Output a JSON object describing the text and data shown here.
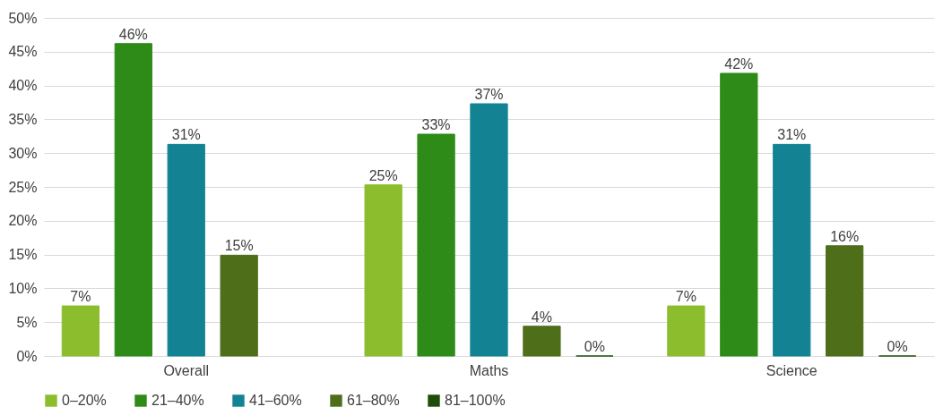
{
  "chart_data": {
    "type": "bar",
    "categories": [
      "Overall",
      "Maths",
      "Science"
    ],
    "series": [
      {
        "name": "0–20%",
        "color": "#8bbd2c",
        "values": [
          7.4,
          25.3,
          7.4
        ],
        "value_labels": [
          "7%",
          "25%",
          "7%"
        ]
      },
      {
        "name": "21–40%",
        "color": "#2e8b17",
        "values": [
          46.2,
          32.8,
          41.8
        ],
        "value_labels": [
          "46%",
          "33%",
          "42%"
        ]
      },
      {
        "name": "41–60%",
        "color": "#138394",
        "values": [
          31.3,
          37.3,
          31.3
        ],
        "value_labels": [
          "31%",
          "37%",
          "31%"
        ]
      },
      {
        "name": "61–80%",
        "color": "#4e6e1a",
        "values": [
          14.9,
          4.4,
          16.3
        ],
        "value_labels": [
          "15%",
          "4%",
          "16%"
        ]
      },
      {
        "name": "81–100%",
        "color": "#1e4d0a",
        "values": [
          null,
          0,
          0
        ],
        "value_labels": [
          null,
          "0%",
          "0%"
        ]
      }
    ],
    "ylim": [
      0,
      50
    ],
    "yticks": [
      {
        "value": 0,
        "label": "0%"
      },
      {
        "value": 5,
        "label": "5%"
      },
      {
        "value": 10,
        "label": "10%"
      },
      {
        "value": 15,
        "label": "15%"
      },
      {
        "value": 20,
        "label": "20%"
      },
      {
        "value": 25,
        "label": "25%"
      },
      {
        "value": 30,
        "label": "30%"
      },
      {
        "value": 35,
        "label": "35%"
      },
      {
        "value": 40,
        "label": "40%"
      },
      {
        "value": 45,
        "label": "45%"
      },
      {
        "value": 50,
        "label": "50%"
      }
    ],
    "grid": "y",
    "legend": "bottom"
  }
}
